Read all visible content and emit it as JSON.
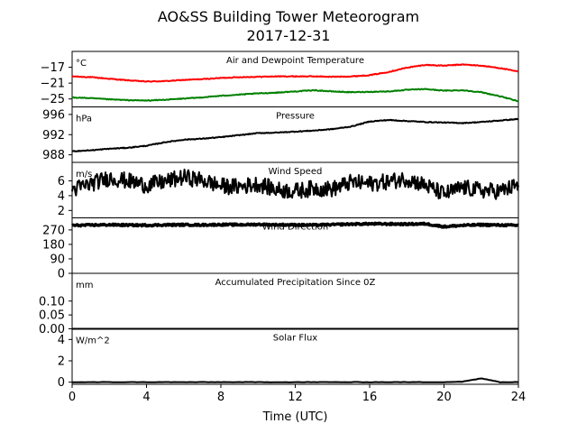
{
  "figure": {
    "title": "AO&SS Building Tower Meteorogram",
    "subtitle": "2017-12-31"
  },
  "chart_data": [
    {
      "type": "line",
      "title": "Air and Dewpoint Temperature",
      "unit": "°C",
      "ylim": [
        -27,
        -13
      ],
      "yticks": [
        -17,
        -21,
        -25
      ],
      "ytick_labels": [
        "−17",
        "−21",
        "−25"
      ],
      "x": [
        0,
        1,
        2,
        3,
        4,
        5,
        6,
        7,
        8,
        9,
        10,
        11,
        12,
        13,
        14,
        15,
        16,
        17,
        18,
        19,
        20,
        21,
        22,
        23,
        24
      ],
      "series": [
        {
          "color": "#ff0000",
          "values": [
            -19.3,
            -19.5,
            -19.9,
            -20.3,
            -20.6,
            -20.5,
            -20.2,
            -20.0,
            -19.7,
            -19.5,
            -19.4,
            -19.3,
            -19.3,
            -19.3,
            -19.4,
            -19.3,
            -19.0,
            -18.2,
            -17.1,
            -16.4,
            -16.6,
            -16.3,
            -16.6,
            -17.2,
            -18.1
          ]
        },
        {
          "color": "#008000",
          "values": [
            -24.6,
            -24.8,
            -25.1,
            -25.3,
            -25.4,
            -25.2,
            -24.9,
            -24.6,
            -24.2,
            -23.9,
            -23.6,
            -23.4,
            -23.1,
            -22.8,
            -23.1,
            -23.3,
            -23.2,
            -23.1,
            -22.7,
            -22.5,
            -22.9,
            -22.8,
            -23.3,
            -24.3,
            -25.6
          ]
        }
      ]
    },
    {
      "type": "line",
      "title": "Pressure",
      "unit": "hPa",
      "ylim": [
        986.5,
        997.5
      ],
      "yticks": [
        996,
        992,
        988
      ],
      "ytick_labels": [
        "996",
        "992",
        "988"
      ],
      "x": [
        0,
        1,
        2,
        3,
        4,
        5,
        6,
        7,
        8,
        9,
        10,
        11,
        12,
        13,
        14,
        15,
        16,
        17,
        18,
        19,
        20,
        21,
        22,
        23,
        24
      ],
      "series": [
        {
          "color": "#000000",
          "values": [
            988.7,
            988.9,
            989.2,
            989.4,
            989.8,
            990.5,
            991.0,
            991.2,
            991.5,
            991.9,
            992.3,
            992.4,
            992.6,
            992.8,
            993.1,
            993.6,
            994.6,
            994.9,
            994.7,
            994.5,
            994.4,
            994.3,
            994.5,
            994.8,
            995.1
          ]
        }
      ]
    },
    {
      "type": "line",
      "title": "Wind Speed",
      "unit": "m/s",
      "ylim": [
        1,
        8.5
      ],
      "yticks": [
        6,
        4,
        2
      ],
      "ytick_labels": [
        "6",
        "4",
        "2"
      ],
      "x": [
        0,
        1,
        2,
        3,
        4,
        5,
        6,
        7,
        8,
        9,
        10,
        11,
        12,
        13,
        14,
        15,
        16,
        17,
        18,
        19,
        20,
        21,
        22,
        23,
        24
      ],
      "series": [
        {
          "color": "#000000",
          "values": [
            4.8,
            5.6,
            6.4,
            6.0,
            5.4,
            5.9,
            6.5,
            6.1,
            5.3,
            5.2,
            5.6,
            4.8,
            4.6,
            5.0,
            4.9,
            5.8,
            5.6,
            5.9,
            6.3,
            5.4,
            4.2,
            5.1,
            4.7,
            4.6,
            5.4
          ]
        }
      ]
    },
    {
      "type": "line",
      "title": "Wind Direction",
      "unit": "",
      "ylim": [
        0,
        345
      ],
      "yticks": [
        270,
        180,
        90,
        0
      ],
      "ytick_labels": [
        "270",
        "180",
        "90",
        "0"
      ],
      "x": [
        0,
        1,
        2,
        3,
        4,
        5,
        6,
        7,
        8,
        9,
        10,
        11,
        12,
        13,
        14,
        15,
        16,
        17,
        18,
        19,
        20,
        21,
        22,
        23,
        24
      ],
      "series": [
        {
          "color": "#000000",
          "values": [
            298,
            300,
            302,
            300,
            299,
            301,
            302,
            301,
            303,
            302,
            304,
            302,
            301,
            300,
            303,
            306,
            308,
            307,
            306,
            308,
            290,
            298,
            302,
            300,
            298
          ]
        }
      ]
    },
    {
      "type": "line",
      "title": "Accumulated Precipitation Since 0Z",
      "unit": "mm",
      "ylim": [
        0,
        0.2
      ],
      "yticks": [
        0.1,
        0.05,
        0.0
      ],
      "ytick_labels": [
        "0.10",
        "0.05",
        "0.00"
      ],
      "x": [
        0,
        24
      ],
      "series": [
        {
          "color": "#000000",
          "values": [
            0.0,
            0.0
          ]
        }
      ]
    },
    {
      "type": "line",
      "title": "Solar Flux",
      "unit": "W/m^2",
      "ylim": [
        -0.2,
        5.0
      ],
      "yticks": [
        4,
        2,
        0
      ],
      "ytick_labels": [
        "4",
        "2",
        "0"
      ],
      "xlabel": "Time (UTC)",
      "xlim": [
        0,
        24
      ],
      "xticks": [
        0,
        4,
        8,
        12,
        16,
        20,
        24
      ],
      "x": [
        0,
        1,
        2,
        3,
        4,
        5,
        6,
        7,
        8,
        9,
        10,
        11,
        12,
        13,
        14,
        15,
        16,
        17,
        18,
        19,
        20,
        21,
        21.5,
        22,
        22.5,
        23,
        24
      ],
      "series": [
        {
          "color": "#000000",
          "values": [
            0,
            0,
            0,
            0,
            0,
            0,
            0,
            0,
            0,
            0,
            0,
            0,
            0,
            0,
            0,
            0,
            0,
            0,
            0,
            0,
            0,
            0.05,
            0.2,
            0.35,
            0.2,
            0,
            0
          ]
        }
      ]
    }
  ]
}
